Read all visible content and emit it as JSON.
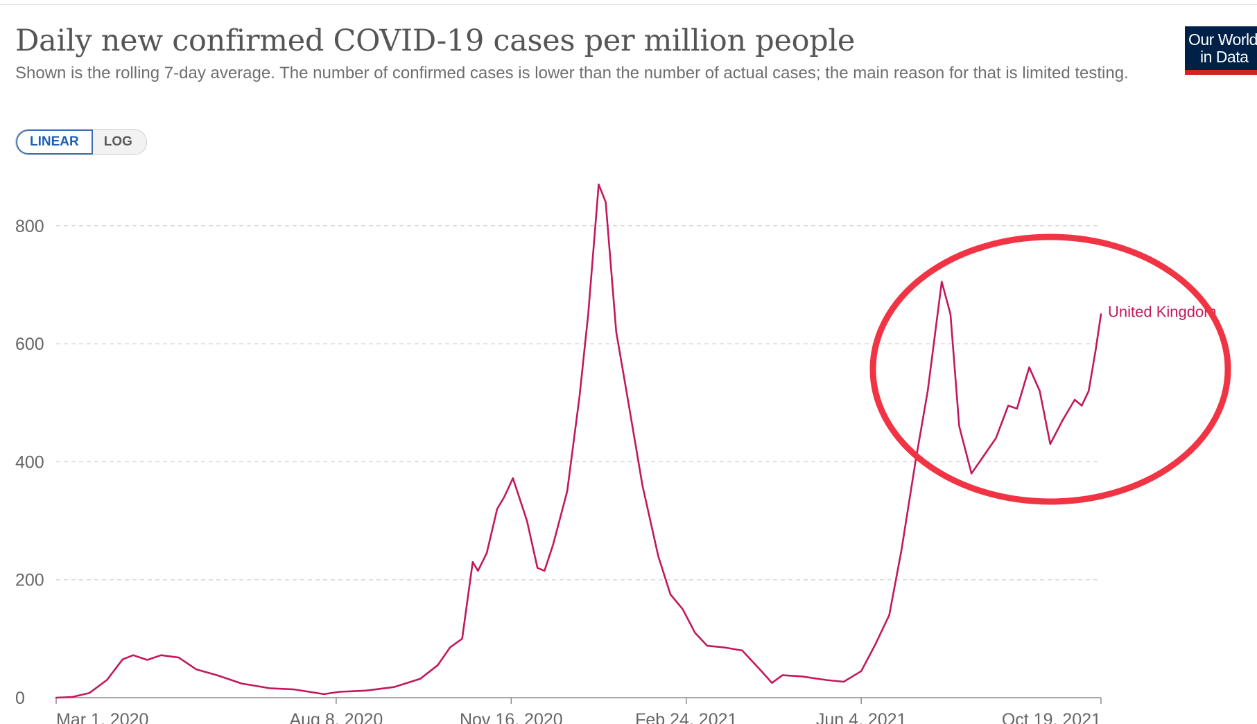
{
  "header": {
    "title": "Daily new confirmed COVID-19 cases per million people",
    "subtitle": "Shown is the rolling 7-day average. The number of confirmed cases is lower than the number of actual cases; the main reason for that is limited testing."
  },
  "logo": {
    "line1": "Our World",
    "line2": "in Data",
    "bg_color": "#002147",
    "accent_color": "#ce261e"
  },
  "scale_toggle": {
    "linear_label": "LINEAR",
    "log_label": "LOG",
    "selected": "LINEAR"
  },
  "colors": {
    "series": "#c2185b",
    "annotation": "#f03444",
    "grid": "#d9d9d9"
  },
  "annotation": {
    "shape": "ellipse",
    "highlights": "Jul–Oct 2021 wave"
  },
  "chart_data": {
    "type": "line",
    "title": "Daily new confirmed COVID-19 cases per million people",
    "xlabel": "",
    "ylabel": "",
    "ylim": [
      0,
      880
    ],
    "xlim": [
      "2020-03-01",
      "2021-10-19"
    ],
    "yticks": [
      0,
      200,
      400,
      600,
      800
    ],
    "xticks": [
      "Mar 1, 2020",
      "Aug 8, 2020",
      "Nov 16, 2020",
      "Feb 24, 2021",
      "Jun 4, 2021",
      "Oct 19, 2021"
    ],
    "grid": "horizontal dashed",
    "legend": "inline label at line end",
    "series": [
      {
        "name": "United Kingdom",
        "points": [
          [
            "2020-03-01",
            0
          ],
          [
            "2020-03-10",
            1
          ],
          [
            "2020-03-20",
            8
          ],
          [
            "2020-03-30",
            30
          ],
          [
            "2020-04-08",
            65
          ],
          [
            "2020-04-14",
            72
          ],
          [
            "2020-04-22",
            64
          ],
          [
            "2020-04-30",
            72
          ],
          [
            "2020-05-10",
            68
          ],
          [
            "2020-05-20",
            48
          ],
          [
            "2020-06-01",
            38
          ],
          [
            "2020-06-15",
            24
          ],
          [
            "2020-07-01",
            16
          ],
          [
            "2020-07-15",
            14
          ],
          [
            "2020-08-01",
            6
          ],
          [
            "2020-08-10",
            10
          ],
          [
            "2020-08-25",
            12
          ],
          [
            "2020-09-10",
            18
          ],
          [
            "2020-09-25",
            32
          ],
          [
            "2020-10-05",
            55
          ],
          [
            "2020-10-12",
            85
          ],
          [
            "2020-10-19",
            100
          ],
          [
            "2020-10-25",
            230
          ],
          [
            "2020-10-28",
            215
          ],
          [
            "2020-11-02",
            245
          ],
          [
            "2020-11-08",
            320
          ],
          [
            "2020-11-12",
            340
          ],
          [
            "2020-11-17",
            372
          ],
          [
            "2020-11-25",
            300
          ],
          [
            "2020-12-01",
            220
          ],
          [
            "2020-12-05",
            215
          ],
          [
            "2020-12-10",
            260
          ],
          [
            "2020-12-18",
            350
          ],
          [
            "2020-12-25",
            510
          ],
          [
            "2020-12-30",
            650
          ],
          [
            "2021-01-05",
            870
          ],
          [
            "2021-01-09",
            840
          ],
          [
            "2021-01-15",
            620
          ],
          [
            "2021-01-22",
            500
          ],
          [
            "2021-01-30",
            360
          ],
          [
            "2021-02-08",
            240
          ],
          [
            "2021-02-15",
            175
          ],
          [
            "2021-02-22",
            150
          ],
          [
            "2021-03-01",
            110
          ],
          [
            "2021-03-08",
            88
          ],
          [
            "2021-03-18",
            85
          ],
          [
            "2021-03-28",
            80
          ],
          [
            "2021-04-08",
            45
          ],
          [
            "2021-04-14",
            25
          ],
          [
            "2021-04-20",
            38
          ],
          [
            "2021-05-01",
            36
          ],
          [
            "2021-05-15",
            30
          ],
          [
            "2021-05-25",
            27
          ],
          [
            "2021-06-04",
            45
          ],
          [
            "2021-06-12",
            90
          ],
          [
            "2021-06-20",
            140
          ],
          [
            "2021-06-27",
            250
          ],
          [
            "2021-07-05",
            400
          ],
          [
            "2021-07-12",
            520
          ],
          [
            "2021-07-20",
            705
          ],
          [
            "2021-07-25",
            650
          ],
          [
            "2021-07-30",
            460
          ],
          [
            "2021-08-06",
            380
          ],
          [
            "2021-08-13",
            410
          ],
          [
            "2021-08-20",
            440
          ],
          [
            "2021-08-27",
            495
          ],
          [
            "2021-09-01",
            490
          ],
          [
            "2021-09-08",
            560
          ],
          [
            "2021-09-14",
            520
          ],
          [
            "2021-09-20",
            430
          ],
          [
            "2021-09-27",
            470
          ],
          [
            "2021-10-04",
            505
          ],
          [
            "2021-10-08",
            495
          ],
          [
            "2021-10-12",
            520
          ],
          [
            "2021-10-16",
            590
          ],
          [
            "2021-10-19",
            650
          ]
        ]
      }
    ]
  }
}
